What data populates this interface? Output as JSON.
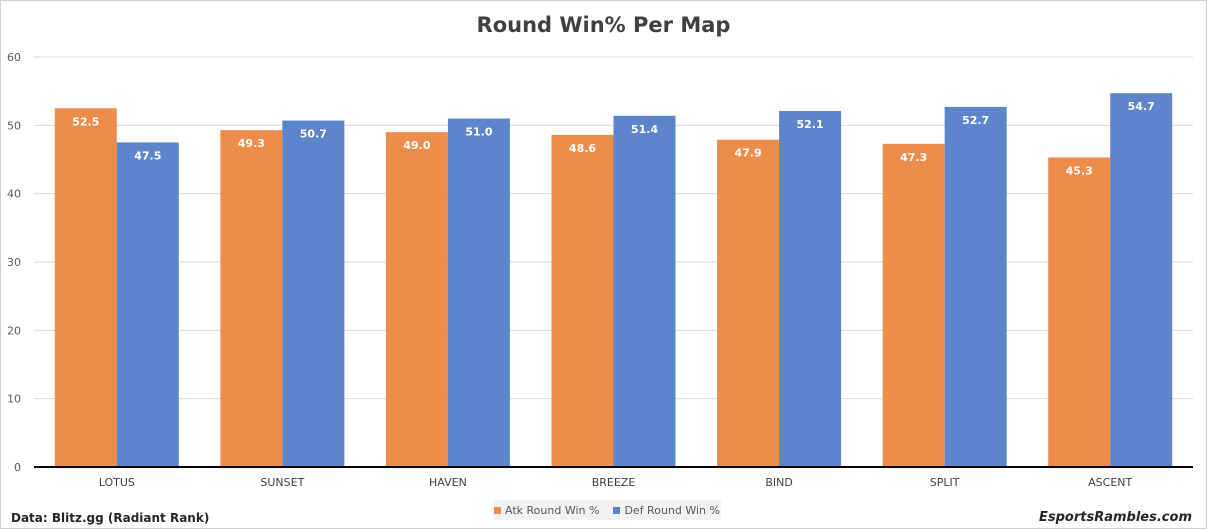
{
  "chart_data": {
    "type": "bar",
    "title": "Round Win% Per Map",
    "categories": [
      "LOTUS",
      "SUNSET",
      "HAVEN",
      "BREEZE",
      "BIND",
      "SPLIT",
      "ASCENT"
    ],
    "series": [
      {
        "name": "Atk Round Win %",
        "color": "#ed8d4b",
        "values": [
          52.5,
          49.3,
          49.0,
          48.6,
          47.9,
          47.3,
          45.3
        ]
      },
      {
        "name": "Def Round Win %",
        "color": "#5d85cc",
        "values": [
          47.5,
          50.7,
          51.0,
          51.4,
          52.1,
          52.7,
          54.7
        ]
      }
    ],
    "ylim": [
      0,
      60
    ],
    "yticks": [
      0,
      10,
      20,
      30,
      40,
      50,
      60
    ],
    "grid": true,
    "legend": "bottom",
    "data_labels": true
  },
  "footer": {
    "source": "Data: Blitz.gg (Radiant Rank)",
    "brand": "EsportsRambles.com"
  }
}
